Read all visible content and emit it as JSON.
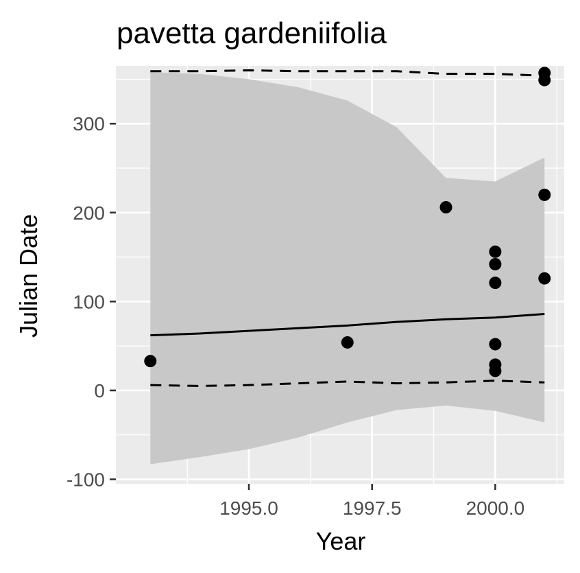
{
  "chart_data": {
    "type": "scatter",
    "title": "pavetta gardeniifolia",
    "xlabel": "Year",
    "ylabel": "Julian Date",
    "xlim": [
      1992.3,
      2001.4
    ],
    "ylim": [
      -105,
      365
    ],
    "x_ticks": [
      1995.0,
      1997.5,
      2000.0
    ],
    "x_tick_labels": [
      "1995.0",
      "1997.5",
      "2000.0"
    ],
    "y_ticks": [
      -100,
      0,
      100,
      200,
      300
    ],
    "y_tick_labels": [
      "-100",
      "0",
      "100",
      "200",
      "300"
    ],
    "grid": true,
    "legend": "none",
    "colors": {
      "panel": "#ebebeb",
      "grid": "#ffffff",
      "ribbon": "#c8c8c8",
      "points": "#000000",
      "lines": "#000000",
      "tick_text": "#4d4d4d"
    },
    "points": [
      {
        "x": 1993,
        "y": 33
      },
      {
        "x": 1997,
        "y": 54
      },
      {
        "x": 1999,
        "y": 206
      },
      {
        "x": 2000,
        "y": 156
      },
      {
        "x": 2000,
        "y": 142
      },
      {
        "x": 2000,
        "y": 121
      },
      {
        "x": 2000,
        "y": 52
      },
      {
        "x": 2000,
        "y": 29
      },
      {
        "x": 2000,
        "y": 22
      },
      {
        "x": 2001,
        "y": 357
      },
      {
        "x": 2001,
        "y": 349
      },
      {
        "x": 2001,
        "y": 220
      },
      {
        "x": 2001,
        "y": 126
      }
    ],
    "fit_line": [
      {
        "x": 1993,
        "y": 62
      },
      {
        "x": 1994,
        "y": 64
      },
      {
        "x": 1995,
        "y": 67
      },
      {
        "x": 1996,
        "y": 70
      },
      {
        "x": 1997,
        "y": 73
      },
      {
        "x": 1998,
        "y": 77
      },
      {
        "x": 1999,
        "y": 80
      },
      {
        "x": 2000,
        "y": 82
      },
      {
        "x": 2001,
        "y": 86
      }
    ],
    "upper_dashed": [
      {
        "x": 1993,
        "y": 359
      },
      {
        "x": 1994,
        "y": 359
      },
      {
        "x": 1995,
        "y": 360
      },
      {
        "x": 1996,
        "y": 359
      },
      {
        "x": 1997,
        "y": 359
      },
      {
        "x": 1998,
        "y": 359
      },
      {
        "x": 1999,
        "y": 356
      },
      {
        "x": 2000,
        "y": 356
      },
      {
        "x": 2001,
        "y": 354
      }
    ],
    "lower_dashed": [
      {
        "x": 1993,
        "y": 6
      },
      {
        "x": 1994,
        "y": 5
      },
      {
        "x": 1995,
        "y": 6
      },
      {
        "x": 1996,
        "y": 8
      },
      {
        "x": 1997,
        "y": 10
      },
      {
        "x": 1998,
        "y": 8
      },
      {
        "x": 1999,
        "y": 9
      },
      {
        "x": 2000,
        "y": 11
      },
      {
        "x": 2001,
        "y": 9
      }
    ],
    "ribbon_upper": [
      {
        "x": 1993,
        "y": 358
      },
      {
        "x": 1994,
        "y": 356
      },
      {
        "x": 1995,
        "y": 350
      },
      {
        "x": 1996,
        "y": 341
      },
      {
        "x": 1997,
        "y": 326
      },
      {
        "x": 1998,
        "y": 296
      },
      {
        "x": 1999,
        "y": 239
      },
      {
        "x": 2000,
        "y": 235
      },
      {
        "x": 2001,
        "y": 262
      }
    ],
    "ribbon_lower": [
      {
        "x": 1993,
        "y": -83
      },
      {
        "x": 1994,
        "y": -75
      },
      {
        "x": 1995,
        "y": -66
      },
      {
        "x": 1996,
        "y": -53
      },
      {
        "x": 1997,
        "y": -36
      },
      {
        "x": 1998,
        "y": -22
      },
      {
        "x": 1999,
        "y": -17
      },
      {
        "x": 2000,
        "y": -23
      },
      {
        "x": 2001,
        "y": -36
      }
    ]
  }
}
